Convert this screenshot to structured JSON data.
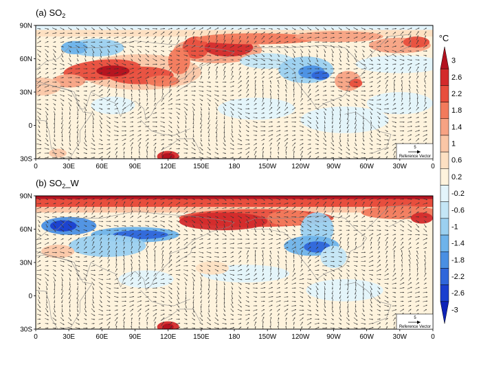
{
  "panels": [
    {
      "title_prefix": "(a) SO",
      "title_sub": "2",
      "title_suffix": "",
      "reference_vector_value": "5",
      "reference_vector_label": "Reference Vector"
    },
    {
      "title_prefix": "(b) SO",
      "title_sub": "2",
      "title_suffix": "_W",
      "reference_vector_value": "5",
      "reference_vector_label": "Reference Vector"
    }
  ],
  "lat_labels": [
    "90N",
    "60N",
    "30N",
    "0",
    "30S"
  ],
  "lon_labels": [
    "0",
    "30E",
    "60E",
    "90E",
    "120E",
    "150E",
    "180",
    "150W",
    "120W",
    "90W",
    "60W",
    "30W",
    "0"
  ],
  "colorbar": {
    "unit": "°C",
    "labels": [
      "3",
      "2.6",
      "2.2",
      "1.8",
      "1.4",
      "1",
      "0.6",
      "0.2",
      "-0.2",
      "-0.6",
      "-1",
      "-1.4",
      "-1.8",
      "-2.2",
      "-2.6",
      "-3"
    ],
    "colors": [
      "#b3121f",
      "#d32a2b",
      "#e84e3d",
      "#f27a5c",
      "#f7a283",
      "#fac6a6",
      "#fde0c2",
      "#fef3dd",
      "#e3f4fb",
      "#c4e6f6",
      "#9bd0f0",
      "#6eb3ea",
      "#4a8fe3",
      "#2f66da",
      "#1a3fcf",
      "#0f23b8"
    ]
  }
}
